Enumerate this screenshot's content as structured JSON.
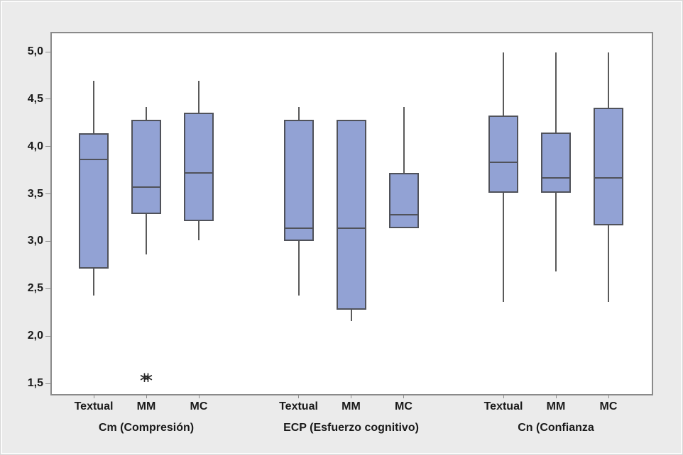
{
  "chart_data": {
    "type": "box",
    "title": "",
    "xlabel": "",
    "ylabel": "",
    "grid": false,
    "legend": "none",
    "y_axis": {
      "min": 1.5,
      "max": 5.0,
      "tick_values": [
        1.5,
        2.0,
        2.5,
        3.0,
        3.5,
        4.0,
        4.5,
        5.0
      ],
      "tick_labels": [
        "1,5",
        "2,0",
        "2,5",
        "3,0",
        "3,5",
        "4,0",
        "4,5",
        "5,0"
      ]
    },
    "groups": [
      {
        "label": "Cm (Compresión)",
        "boxes": [
          {
            "category": "Textual",
            "whisker_low": 2.43,
            "q1": 2.71,
            "median": 3.86,
            "q3": 4.14,
            "whisker_high": 4.69,
            "outliers": []
          },
          {
            "category": "MM",
            "whisker_low": 2.86,
            "q1": 3.29,
            "median": 3.57,
            "q3": 4.28,
            "whisker_high": 4.42,
            "outliers": [
              1.57,
              1.57
            ]
          },
          {
            "category": "MC",
            "whisker_low": 3.01,
            "q1": 3.21,
            "median": 3.72,
            "q3": 4.36,
            "whisker_high": 4.69,
            "outliers": []
          }
        ]
      },
      {
        "label": "ECP (Esfuerzo cognitivo)",
        "boxes": [
          {
            "category": "Textual",
            "whisker_low": 2.43,
            "q1": 3.0,
            "median": 3.14,
            "q3": 4.28,
            "whisker_high": 4.42,
            "outliers": []
          },
          {
            "category": "MM",
            "whisker_low": 2.16,
            "q1": 2.28,
            "median": 3.14,
            "q3": 4.28,
            "whisker_high": null,
            "outliers": []
          },
          {
            "category": "MC",
            "whisker_low": null,
            "q1": 3.14,
            "median": 3.28,
            "q3": 3.72,
            "whisker_high": 4.42,
            "outliers": []
          }
        ]
      },
      {
        "label": "Cn (Confianza",
        "boxes": [
          {
            "category": "Textual",
            "whisker_low": 2.36,
            "q1": 3.51,
            "median": 3.83,
            "q3": 4.33,
            "whisker_high": 4.99,
            "outliers": []
          },
          {
            "category": "MM",
            "whisker_low": 2.68,
            "q1": 3.51,
            "median": 3.67,
            "q3": 4.15,
            "whisker_high": 4.99,
            "outliers": []
          },
          {
            "category": "MC",
            "whisker_low": 2.36,
            "q1": 3.17,
            "median": 3.67,
            "q3": 4.41,
            "whisker_high": 4.99,
            "outliers": []
          }
        ]
      }
    ],
    "colors": {
      "box_fill": "#92a2d4",
      "box_border": "#50525a",
      "median_line": "#50525a",
      "whisker": "#5a5a5a",
      "plot_border": "#8a8a8a",
      "plot_background": "#ffffff",
      "background": "#ebebeb",
      "text": "#1a1a1a"
    },
    "outlier_marker": "asterisk"
  }
}
